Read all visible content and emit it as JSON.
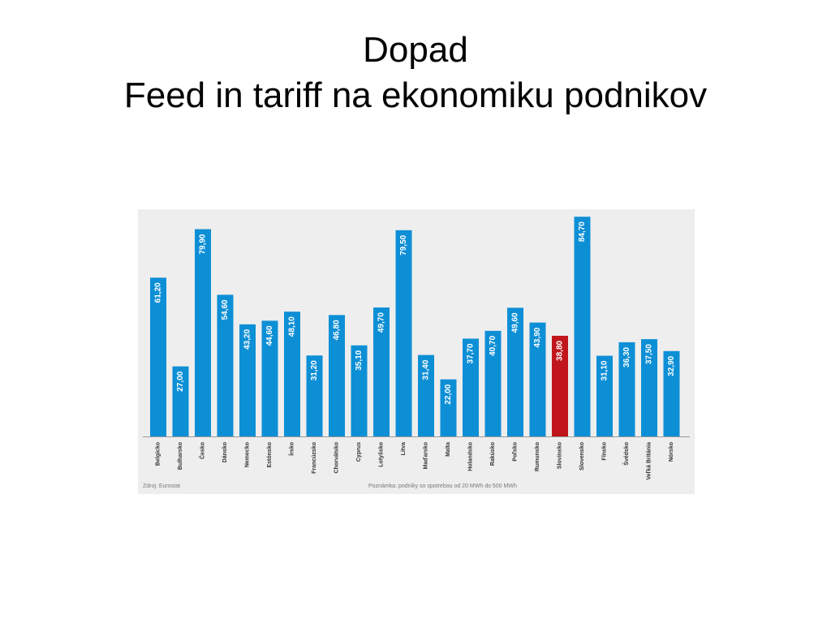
{
  "slide": {
    "title_line1": "Dopad",
    "title_line2": "Feed in tariff na ekonomiku podnikov"
  },
  "chart_data": {
    "type": "bar",
    "title": "",
    "xlabel": "",
    "ylabel": "",
    "ylim": [
      0,
      86
    ],
    "grid": false,
    "legend": "none",
    "categories": [
      "Belgicko",
      "Bulharsko",
      "Česko",
      "Dánsko",
      "Nemecko",
      "Estónsko",
      "Írsko",
      "Francúzsko",
      "Chorvátsko",
      "Cyprus",
      "Lotyšsko",
      "Litva",
      "Maďarsko",
      "Malta",
      "Holandsko",
      "Rakúsko",
      "Poľsko",
      "Rumunsko",
      "Slovinsko",
      "Slovensko",
      "Fínsko",
      "Švédsko",
      "Veľká Británia",
      "Nórsko"
    ],
    "values": [
      61.2,
      27.0,
      79.9,
      54.6,
      43.2,
      44.6,
      48.1,
      31.2,
      46.8,
      35.1,
      49.7,
      79.5,
      31.4,
      22.0,
      37.7,
      40.7,
      49.6,
      43.9,
      38.8,
      84.7,
      31.1,
      36.3,
      37.5,
      32.9
    ],
    "value_labels": [
      "61,20",
      "27,00",
      "79,90",
      "54,60",
      "43,20",
      "44,60",
      "48,10",
      "31,20",
      "46,80",
      "35,10",
      "49,70",
      "79,50",
      "31,40",
      "22,00",
      "37,70",
      "40,70",
      "49,60",
      "43,90",
      "38,80",
      "84,70",
      "31,10",
      "36,30",
      "37,50",
      "32,90"
    ],
    "highlight_index": 18,
    "colors": {
      "bar": "#0d8fd6",
      "highlight": "#c0161b",
      "background": "#eeeeee",
      "axis": "#999999"
    },
    "source_note": "Zdroj: Eurostat",
    "footnote": "Poznámka: podniky so spotrebou od 20 MWh do 500 MWh"
  }
}
